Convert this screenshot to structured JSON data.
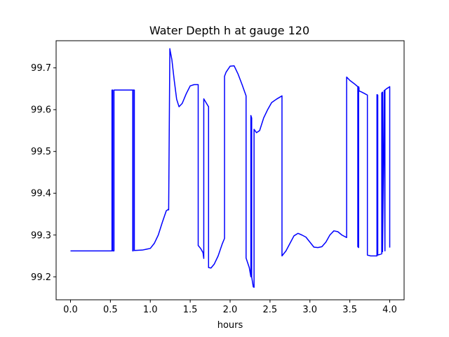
{
  "chart_data": {
    "type": "line",
    "title": "Water Depth h at gauge 120",
    "xlabel": "hours",
    "ylabel": "",
    "xlim": [
      -0.18,
      4.18
    ],
    "ylim": [
      99.145,
      99.765
    ],
    "xticks": [
      0.0,
      0.5,
      1.0,
      1.5,
      2.0,
      2.5,
      3.0,
      3.5,
      4.0
    ],
    "xtick_labels": [
      "0.0",
      "0.5",
      "1.0",
      "1.5",
      "2.0",
      "2.5",
      "3.0",
      "3.5",
      "4.0"
    ],
    "yticks": [
      99.2,
      99.3,
      99.4,
      99.5,
      99.6,
      99.7
    ],
    "ytick_labels": [
      "99.2",
      "99.3",
      "99.4",
      "99.5",
      "99.6",
      "99.7"
    ],
    "grid": false,
    "series": [
      {
        "color": "#0000ff",
        "x": [
          0.0,
          0.52,
          0.52,
          0.53,
          0.53,
          0.545,
          0.545,
          0.78,
          0.78,
          0.785,
          0.785,
          0.8,
          0.8,
          0.9,
          0.95,
          1.0,
          1.05,
          1.1,
          1.15,
          1.2,
          1.23,
          1.23,
          1.245,
          1.245,
          1.27,
          1.3,
          1.33,
          1.36,
          1.4,
          1.45,
          1.5,
          1.55,
          1.6,
          1.6,
          1.63,
          1.66,
          1.67,
          1.67,
          1.72,
          1.73,
          1.73,
          1.76,
          1.8,
          1.85,
          1.9,
          1.93,
          1.93,
          1.95,
          2.0,
          2.05,
          2.1,
          2.15,
          2.2,
          2.2,
          2.24,
          2.26,
          2.26,
          2.27,
          2.27,
          2.29,
          2.3,
          2.3,
          2.33,
          2.37,
          2.42,
          2.47,
          2.52,
          2.58,
          2.65,
          2.65,
          2.7,
          2.75,
          2.8,
          2.85,
          2.9,
          2.95,
          3.0,
          3.05,
          3.1,
          3.15,
          3.2,
          3.25,
          3.3,
          3.35,
          3.4,
          3.46,
          3.46,
          3.5,
          3.55,
          3.6,
          3.6,
          3.61,
          3.61,
          3.615,
          3.615,
          3.65,
          3.7,
          3.72,
          3.72,
          3.76,
          3.8,
          3.84,
          3.84,
          3.85,
          3.85,
          3.9,
          3.9,
          3.91,
          3.91,
          3.93,
          3.93,
          3.94,
          3.94,
          3.96,
          4.0,
          4.0,
          4.0
        ],
        "y": [
          99.262,
          99.262,
          99.647,
          99.647,
          99.262,
          99.262,
          99.647,
          99.647,
          99.262,
          99.262,
          99.647,
          99.647,
          99.263,
          99.264,
          99.266,
          99.268,
          99.28,
          99.3,
          99.33,
          99.358,
          99.362,
          99.36,
          99.746,
          99.745,
          99.72,
          99.67,
          99.625,
          99.607,
          99.615,
          99.638,
          99.657,
          99.66,
          99.66,
          99.275,
          99.268,
          99.258,
          99.244,
          99.626,
          99.61,
          99.607,
          99.222,
          99.221,
          99.23,
          99.25,
          99.278,
          99.292,
          99.68,
          99.69,
          99.704,
          99.705,
          99.685,
          99.66,
          99.633,
          99.245,
          99.222,
          99.2,
          99.586,
          99.58,
          99.2,
          99.176,
          99.175,
          99.553,
          99.545,
          99.55,
          99.58,
          99.6,
          99.617,
          99.625,
          99.633,
          99.25,
          99.262,
          99.28,
          99.298,
          99.304,
          99.3,
          99.295,
          99.283,
          99.271,
          99.27,
          99.272,
          99.283,
          99.3,
          99.31,
          99.308,
          99.3,
          99.294,
          99.678,
          99.67,
          99.663,
          99.655,
          99.272,
          99.27,
          99.655,
          99.652,
          99.645,
          99.642,
          99.637,
          99.635,
          99.252,
          99.25,
          99.25,
          99.25,
          99.636,
          99.635,
          99.252,
          99.255,
          99.64,
          99.642,
          99.26,
          99.645,
          99.646,
          99.262,
          99.647,
          99.65,
          99.655,
          99.655,
          99.27
        ]
      }
    ]
  }
}
